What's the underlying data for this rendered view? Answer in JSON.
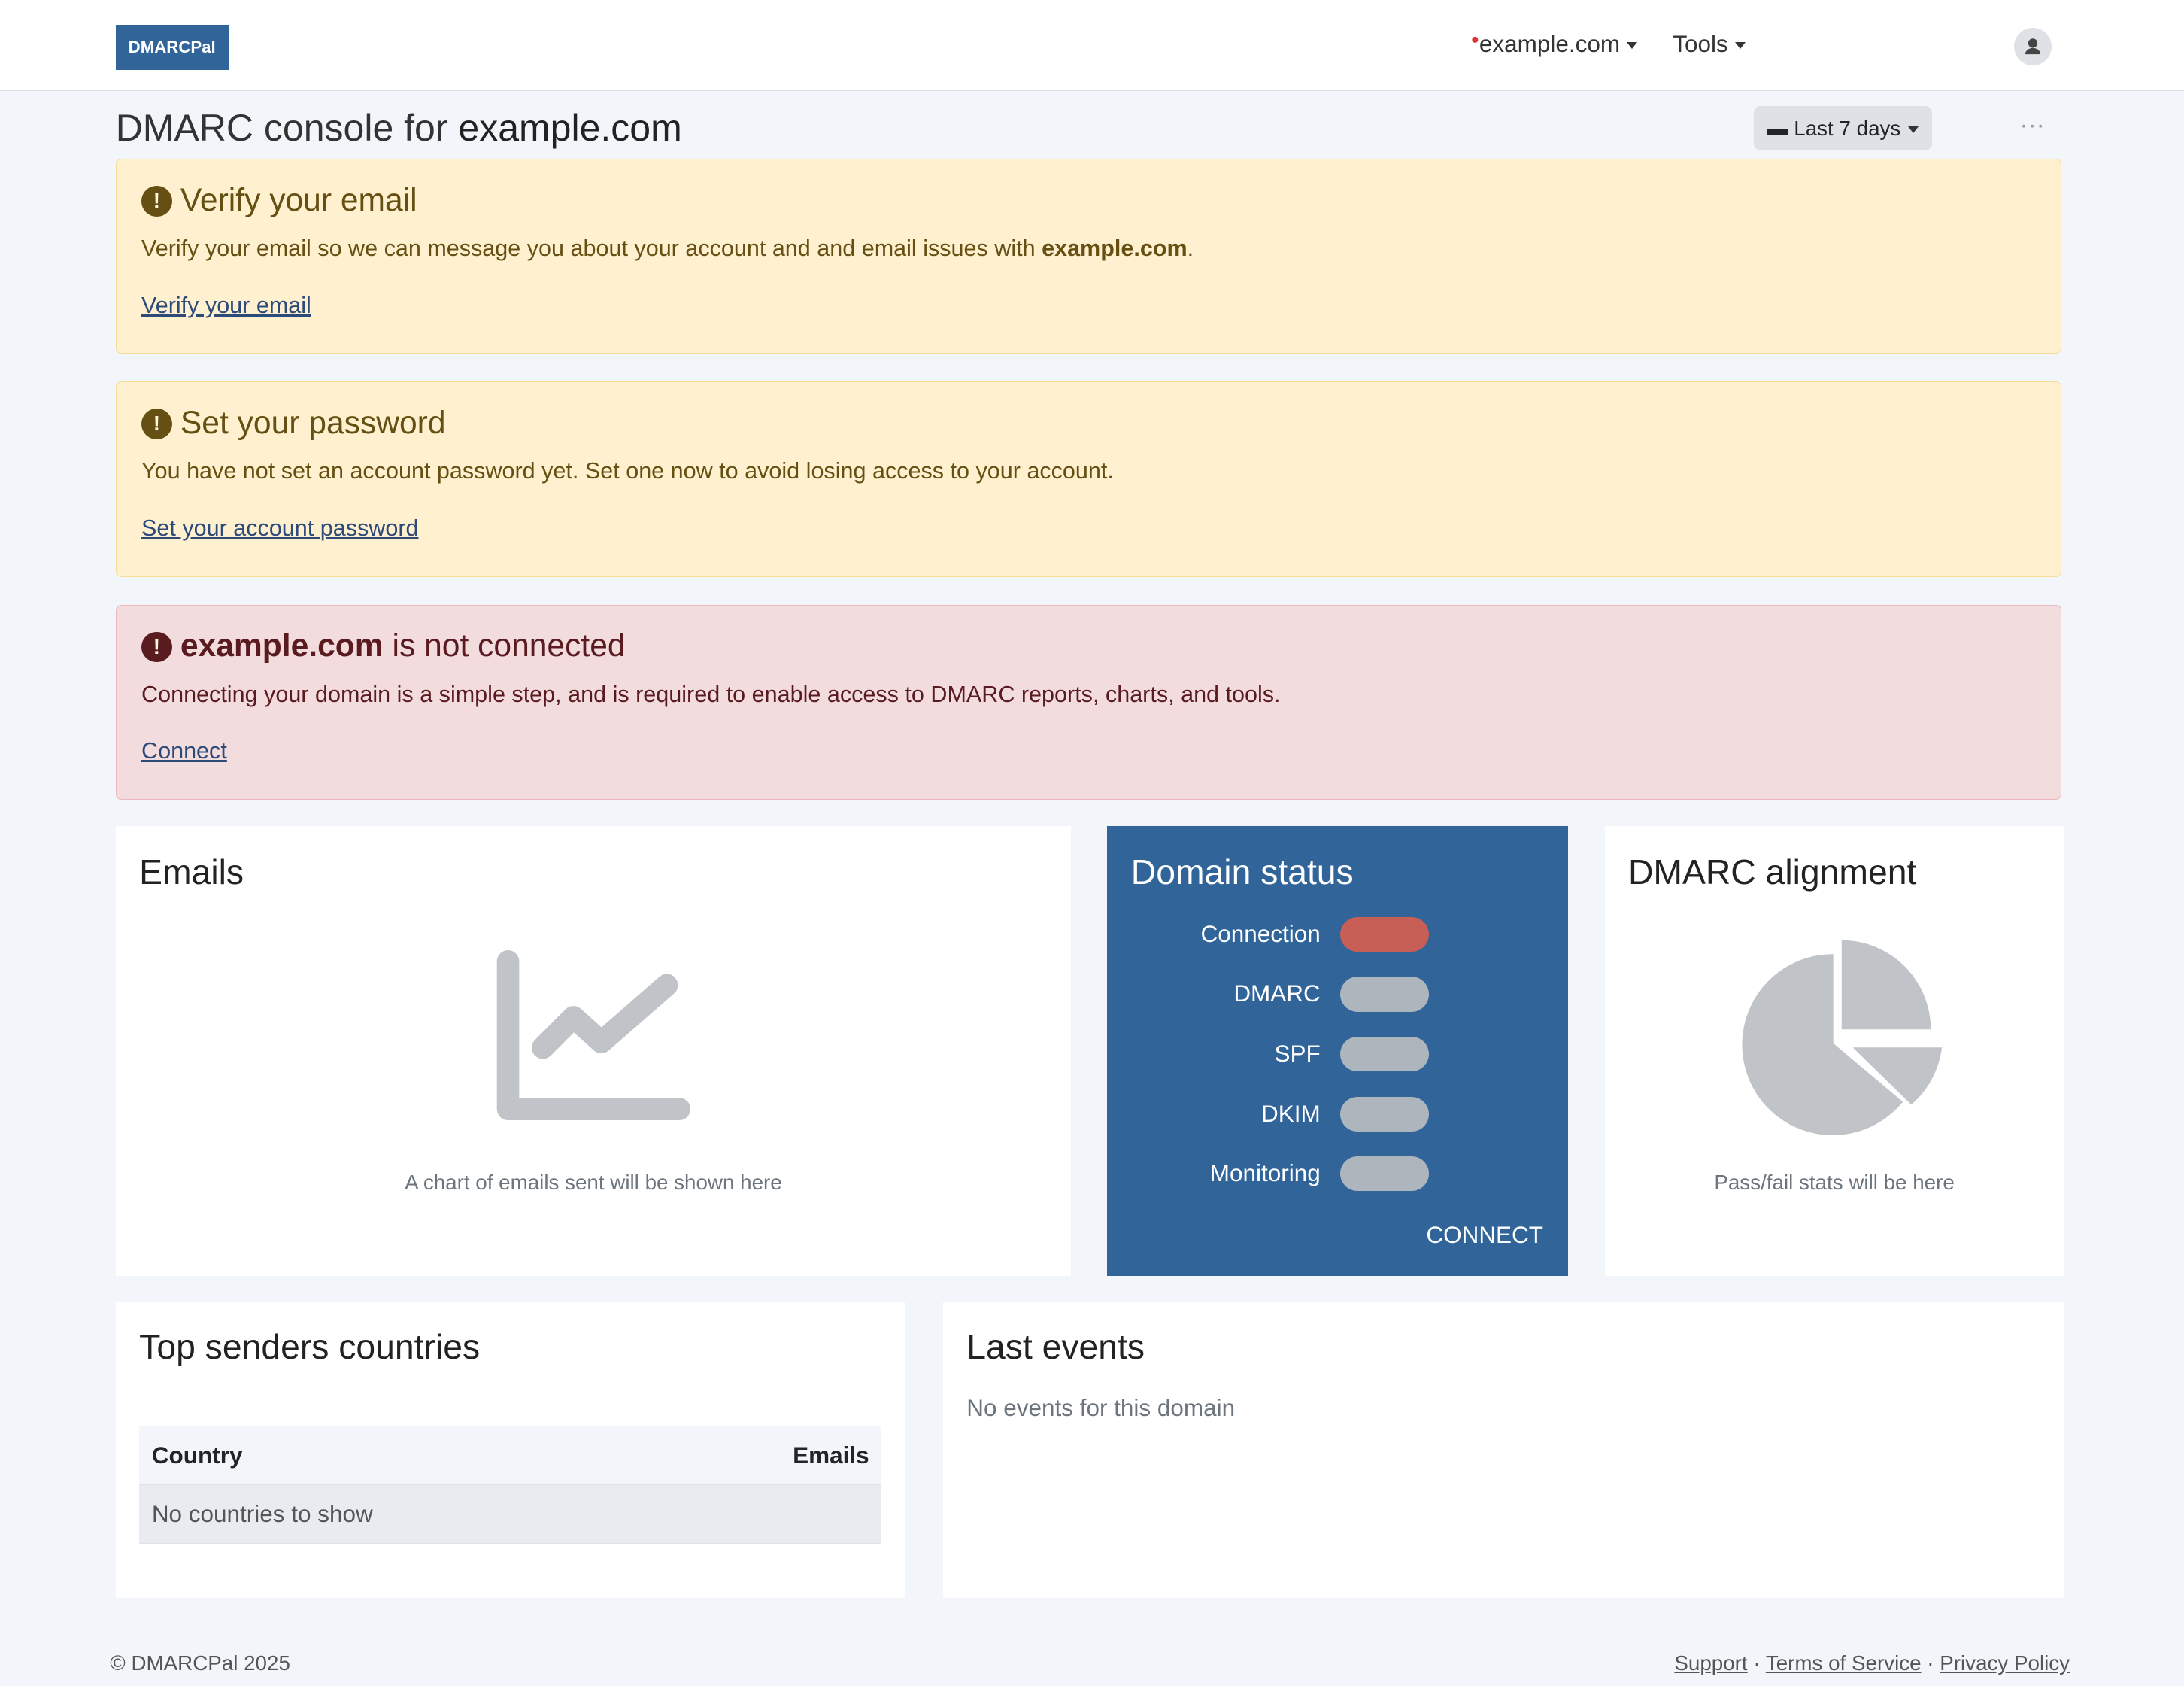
{
  "nav": {
    "logo": "DMARCPal",
    "domain": "example.com",
    "tools": "Tools",
    "user_icon": "user-icon"
  },
  "header": {
    "title_prefix": "DMARC console for ",
    "title_domain": "example.com",
    "range": "Last 7 days",
    "more": "···"
  },
  "alerts": [
    {
      "title": "Verify your email",
      "text": "Verify your email so we can message you about your account and and email issues with ",
      "text_bold": "example.com",
      "text_end": ".",
      "link": "Verify your email"
    },
    {
      "title": "Set your password",
      "text": "You have not set an account password yet. Set one now to avoid losing access to your account.",
      "link": "Set your account password"
    },
    {
      "title_bold": "example.com",
      "title": " is not connected",
      "text": "Connecting your domain is a simple step, and is required to enable access to DMARC reports, charts, and tools.",
      "link": "Connect"
    }
  ],
  "emails": {
    "title": "Emails",
    "placeholder": "A chart of emails sent will be shown here"
  },
  "domain_status": {
    "title": "Domain status",
    "items": [
      {
        "label": "Connection",
        "color": "#c75f57"
      },
      {
        "label": "DMARC",
        "color": "#adb5bd"
      },
      {
        "label": "SPF",
        "color": "#adb5bd"
      },
      {
        "label": "DKIM",
        "color": "#adb5bd"
      },
      {
        "label": "Monitoring",
        "color": "#adb5bd"
      }
    ],
    "connect": "CONNECT"
  },
  "alignment": {
    "title": "DMARC alignment",
    "placeholder": "Pass/fail stats will be here"
  },
  "countries": {
    "title": "Top senders countries",
    "col_country": "Country",
    "col_emails": "Emails",
    "empty": "No countries to show"
  },
  "events": {
    "title": "Last events",
    "empty": "No events for this domain"
  },
  "footer": {
    "copyright": "© DMARCPal 2025",
    "support": "Support",
    "terms": "Terms of Service",
    "privacy": "Privacy Policy",
    "sep": "·"
  }
}
